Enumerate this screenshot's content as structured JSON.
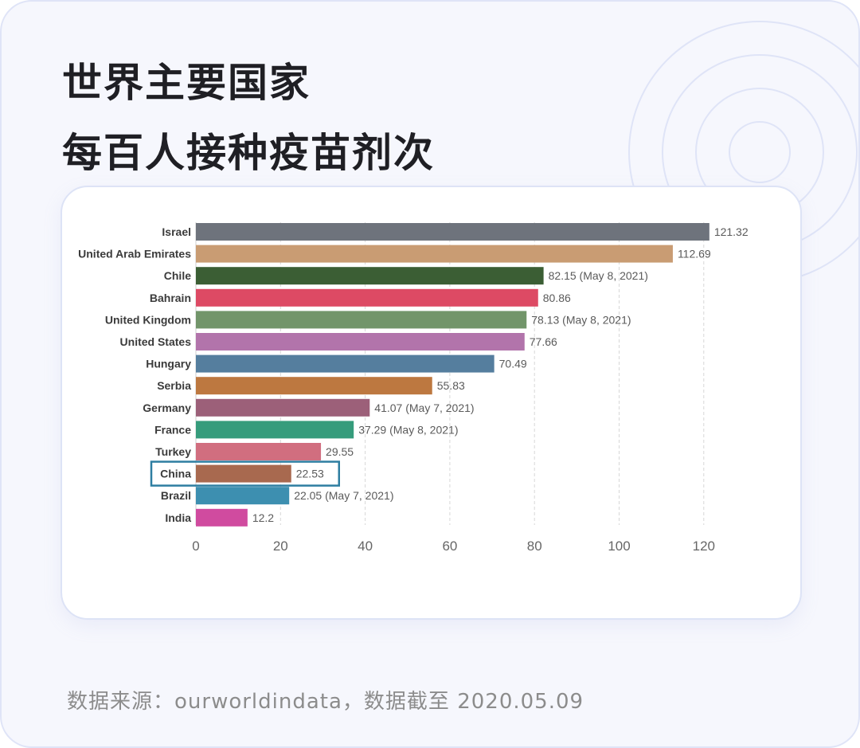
{
  "title": {
    "line1": "世界主要国家",
    "line2": "每百人接种疫苗剂次"
  },
  "source_note": "数据来源：ourworldindata，数据截至 2020.05.09",
  "decoration": "concentric-circles",
  "chart_data": {
    "type": "bar",
    "orientation": "horizontal",
    "categories": [
      "Israel",
      "United Arab Emirates",
      "Chile",
      "Bahrain",
      "United Kingdom",
      "United States",
      "Hungary",
      "Serbia",
      "Germany",
      "France",
      "Turkey",
      "China",
      "Brazil",
      "India"
    ],
    "values": [
      121.32,
      112.69,
      82.15,
      80.86,
      78.13,
      77.66,
      70.49,
      55.83,
      41.07,
      37.29,
      29.55,
      22.53,
      22.05,
      12.2
    ],
    "value_labels": [
      "121.32",
      "112.69",
      "82.15 (May 8, 2021)",
      "80.86",
      "78.13 (May 8, 2021)",
      "77.66",
      "70.49",
      "55.83",
      "41.07 (May 7, 2021)",
      "37.29 (May 8, 2021)",
      "29.55",
      "22.53",
      "22.05 (May 7, 2021)",
      "12.2"
    ],
    "colors": [
      "#6e737c",
      "#c99c73",
      "#3b5e34",
      "#dd4a64",
      "#72956a",
      "#b274ab",
      "#557e9e",
      "#bd7840",
      "#9c6079",
      "#369c7c",
      "#d16e7f",
      "#a8694f",
      "#3d8fb0",
      "#d04b9f"
    ],
    "xlim": [
      0,
      125
    ],
    "xticks": [
      0,
      20,
      40,
      60,
      80,
      100,
      120
    ],
    "grid": "vertical-dashed",
    "highlight": "China",
    "highlight_color": "#2e7ea1"
  }
}
